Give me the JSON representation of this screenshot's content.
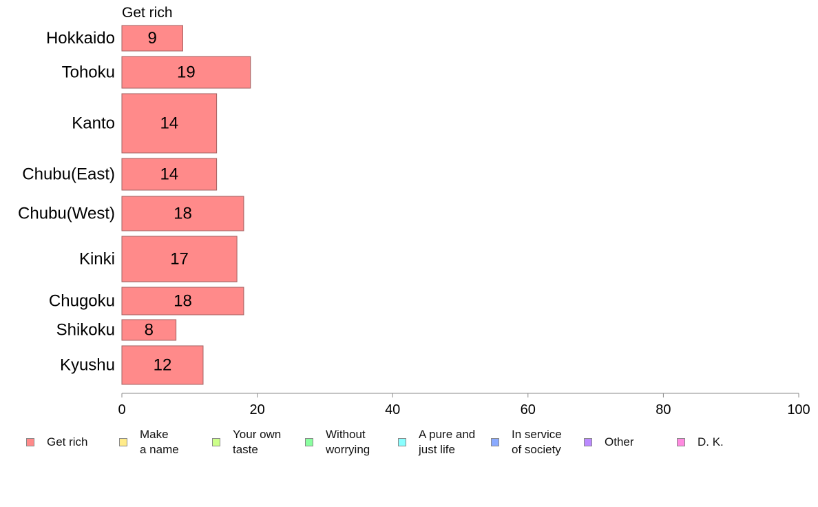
{
  "chart_data": {
    "type": "bar",
    "orientation": "horizontal",
    "title": "Get rich",
    "categories": [
      "Hokkaido",
      "Tohoku",
      "Kanto",
      "Chubu(East)",
      "Chubu(West)",
      "Kinki",
      "Chugoku",
      "Shikoku",
      "Kyushu"
    ],
    "values": [
      9,
      19,
      14,
      14,
      18,
      17,
      18,
      8,
      12
    ],
    "data_labels": [
      "9",
      "19",
      "14",
      "14",
      "18",
      "17",
      "18",
      "8",
      "12"
    ],
    "xlim": [
      0,
      100
    ],
    "xticks": [
      "0",
      "20",
      "40",
      "60",
      "80",
      "100"
    ],
    "bar_color": "#ff8a8a",
    "bar_border": "#a06060",
    "grid": false,
    "legend_position": "bottom"
  },
  "legend": [
    {
      "label": "Get rich",
      "color": "#ff8a8a"
    },
    {
      "label": "Make\na name",
      "color": "#ffeb8a"
    },
    {
      "label": "Your own\ntaste",
      "color": "#ccff8a"
    },
    {
      "label": "Without\nworrying",
      "color": "#8affa0"
    },
    {
      "label": "A pure and\njust life",
      "color": "#8affff"
    },
    {
      "label": "In service\nof society",
      "color": "#8aaaff"
    },
    {
      "label": "Other",
      "color": "#bb8aff"
    },
    {
      "label": "D. K.",
      "color": "#ff8ae0"
    }
  ]
}
